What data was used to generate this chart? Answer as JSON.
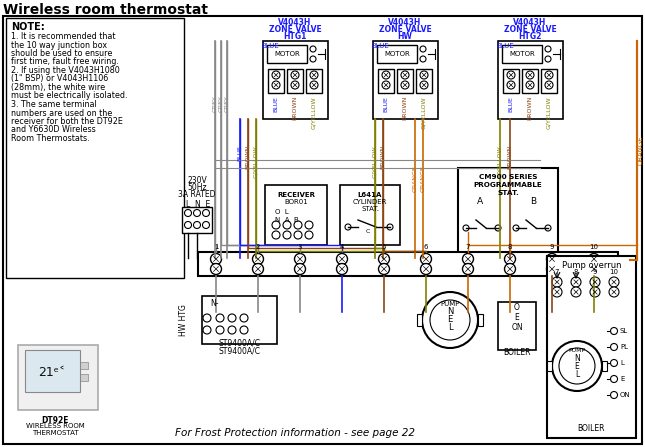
{
  "title": "Wireless room thermostat",
  "bg_color": "#ffffff",
  "border_color": "#000000",
  "note_text": "NOTE:",
  "note_lines": [
    "1. It is recommended that",
    "the 10 way junction box",
    "should be used to ensure",
    "first time, fault free wiring.",
    "2. If using the V4043H1080",
    "(1\" BSP) or V4043H1106",
    "(28mm), the white wire",
    "must be electrically isolated.",
    "3. The same terminal",
    "numbers are used on the",
    "receiver for both the DT92E",
    "and Y6630D Wireless",
    "Room Thermostats."
  ],
  "label_color_blue": "#1a1aff",
  "label_color_orange": "#cc6600",
  "label_color_black": "#000000",
  "wire_color_grey": "#888888",
  "wire_color_blue": "#1a1aff",
  "wire_color_brown": "#8B4513",
  "wire_color_orange": "#cc6600",
  "wire_color_gyellow": "#808000",
  "frost_text": "For Frost Protection information - see page 22"
}
